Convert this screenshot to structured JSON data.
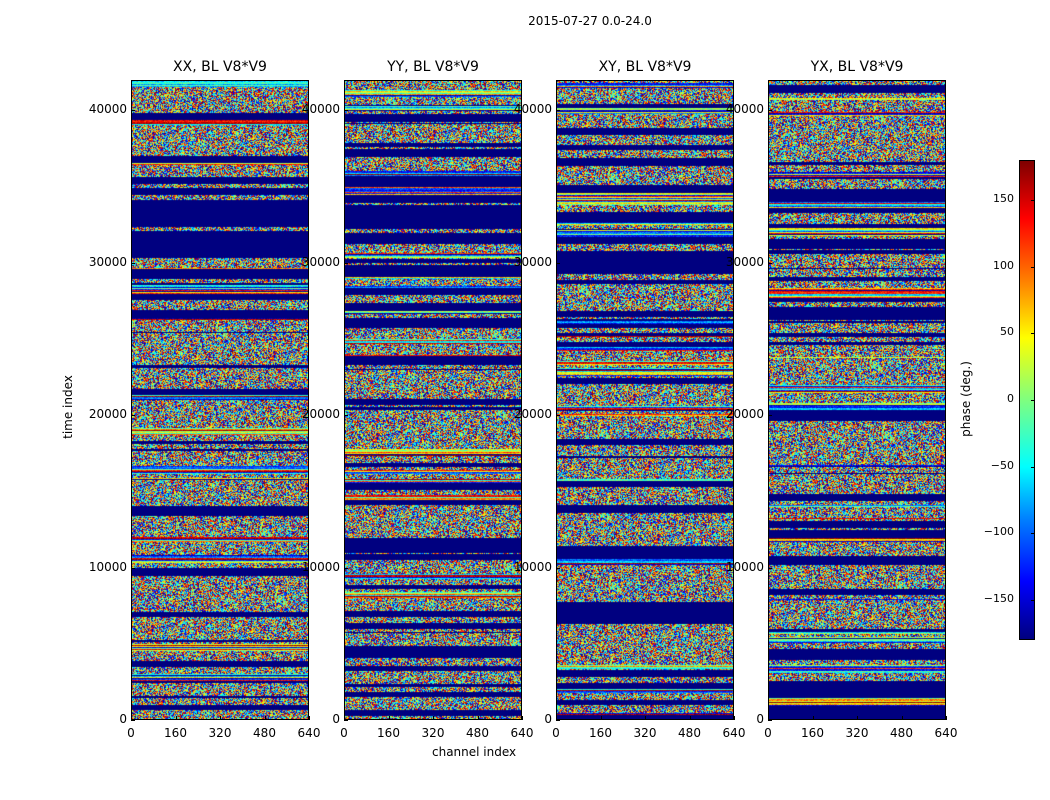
{
  "figure": {
    "suptitle": "2015-07-27 0.0-24.0",
    "xlabel": "channel index",
    "ylabel": "time index",
    "colorbar_label": "phase (deg.)"
  },
  "chart_data": {
    "type": "heatmap",
    "panels": [
      {
        "title": "XX, BL V8*V9"
      },
      {
        "title": "YY, BL V8*V9"
      },
      {
        "title": "XY, BL V8*V9"
      },
      {
        "title": "YX, BL V8*V9"
      }
    ],
    "x_ticks": [
      "0",
      "160",
      "320",
      "480",
      "640"
    ],
    "y_ticks": [
      "0",
      "10000",
      "20000",
      "30000",
      "40000"
    ],
    "xlim": [
      0,
      640
    ],
    "ylim": [
      0,
      42000
    ],
    "colorbar": {
      "ticks": [
        "−150",
        "−100",
        "−50",
        "0",
        "50",
        "100",
        "150"
      ],
      "tick_values": [
        -150,
        -100,
        -50,
        0,
        50,
        100,
        150
      ],
      "range": [
        -180,
        180
      ],
      "colormap": "jet"
    }
  }
}
